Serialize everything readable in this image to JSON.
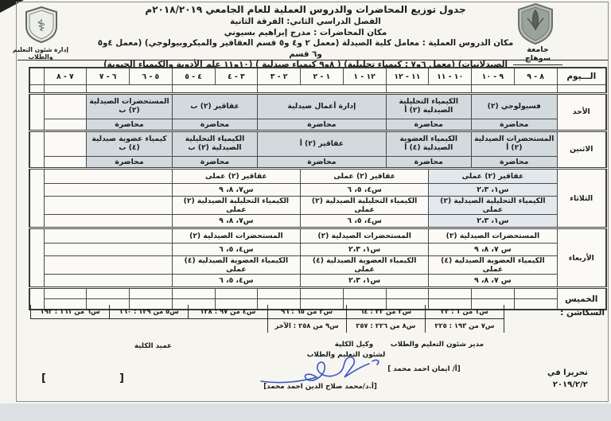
{
  "header": {
    "title": "جدول توزيع المحاضرات والدروس العملية للعام الجامعي ٢٠١٨/٢٠١٩م",
    "term": "الفصل الدراسي الثاني: الفرقة الثانية",
    "lecture_place": "مكان المحاضرات : مدرج إبراهيم بسيوني",
    "practical_place_1": "مكان الدروس العملية : معامل كلية الصيدلة (معمل ٢ و٤ و٥ قسم العقاقير والميكروبيولوجي) (معمل ٤و٥ و٦ قسم",
    "practical_place_2": "الصيدلانيات) (معمل ٦و٧ : كيمياء تحليلية) ( ٨و٩ كيمياء صيدلية ) (١٠و١١ علم الأدوية والكيمياء الحيوية)",
    "university": "جامعة سوهاج",
    "administration": "إدارة شئون التعليم والطلاب",
    "pharmacy_logo_icon": "caduceus-shield-icon",
    "university_logo_icon": "sohag-university-shield-icon"
  },
  "timetable": {
    "day_header": "الـــيوم",
    "hours": [
      "٨ - ٩",
      "٩ - ١٠",
      "١٠ - ١١",
      "١١ - ١٢",
      "١٢ - ١",
      "١ - ٢",
      "٢ - ٣",
      "٣ - ٤",
      "٤ - ٥",
      "٥ - ٦",
      "٦ - ٧",
      "٧ - ٨"
    ],
    "days": [
      {
        "name": "الأحد",
        "rows": [
          {
            "h": "ttl",
            "cells": [
              {
                "s": 2,
                "t": "فسيولوجي (٢)",
                "bg": 1
              },
              {
                "s": 2,
                "t": "الكيمياء التحليلية الصيدلية (٢) أ",
                "bg": 1
              },
              {
                "s": 3,
                "t": "إدارة أعمال صيدلية",
                "bg": 1
              },
              {
                "s": 2,
                "t": "عقاقير (٢) ب",
                "bg": 1
              },
              {
                "s": 2,
                "t": "المستحضرات الصيدلية (٢) ب",
                "bg": 1
              },
              {
                "s": 1,
                "t": ""
              }
            ]
          },
          {
            "h": "sub",
            "cells": [
              {
                "s": 2,
                "t": "محاضرة",
                "bg": 1
              },
              {
                "s": 2,
                "t": "محاضرة",
                "bg": 1
              },
              {
                "s": 3,
                "t": "محاضرة",
                "bg": 1
              },
              {
                "s": 2,
                "t": "محاضرة",
                "bg": 1
              },
              {
                "s": 2,
                "t": "محاضرة",
                "bg": 1
              },
              {
                "s": 1,
                "t": ""
              }
            ]
          }
        ]
      },
      {
        "name": "الاثنين",
        "rows": [
          {
            "h": "ttl",
            "cells": [
              {
                "s": 2,
                "t": "المستحضرات الصيدلية (٢) أ",
                "bg": 1
              },
              {
                "s": 2,
                "t": "الكيمياء العضوية الصيدلية (٤) أ",
                "bg": 1
              },
              {
                "s": 3,
                "t": "عقاقير (٢) أ",
                "bg": 1
              },
              {
                "s": 2,
                "t": "الكيمياء التحليلية الصيدلية (٢) ب",
                "bg": 1
              },
              {
                "s": 2,
                "t": "كيمياء عضوية صيدلية (٤) ب",
                "bg": 1
              },
              {
                "s": 1,
                "t": ""
              }
            ]
          },
          {
            "h": "sub",
            "cells": [
              {
                "s": 2,
                "t": "محاضرة",
                "bg": 1
              },
              {
                "s": 2,
                "t": "محاضرة",
                "bg": 1
              },
              {
                "s": 3,
                "t": "محاضرة",
                "bg": 1
              },
              {
                "s": 2,
                "t": "محاضرة",
                "bg": 1
              },
              {
                "s": 2,
                "t": "محاضرة",
                "bg": 1
              },
              {
                "s": 1,
                "t": ""
              }
            ]
          }
        ]
      },
      {
        "name": "الثلاثاء",
        "rows": [
          {
            "h": "pttl",
            "cells": [
              {
                "s": 3,
                "t": "عقاقير (٢) عملى",
                "bg": 2
              },
              {
                "s": 3,
                "t": "عقاقير (٢) عملى"
              },
              {
                "s": 3,
                "t": "عقاقير (٢) عملى"
              },
              {
                "s": 3,
                "t": ""
              }
            ]
          },
          {
            "h": "psec",
            "cells": [
              {
                "s": 3,
                "t": "س١، ٢،٣",
                "bg": 2
              },
              {
                "s": 3,
                "t": "س٤، ٥، ٦"
              },
              {
                "s": 3,
                "t": "س٧، ٨، ٩"
              },
              {
                "s": 3,
                "t": ""
              }
            ]
          },
          {
            "h": "pttl",
            "cells": [
              {
                "s": 3,
                "t": "الكيمياء التحليلية الصيدلية (٢) عملى",
                "bg": 2
              },
              {
                "s": 3,
                "t": "الكيمياء التحليلية الصيدلية (٢) عملى"
              },
              {
                "s": 3,
                "t": "الكيمياء التحليلية الصيدلية (٢) عملى"
              },
              {
                "s": 3,
                "t": ""
              }
            ]
          },
          {
            "h": "psec",
            "cells": [
              {
                "s": 3,
                "t": "س١، ٢،٣",
                "bg": 2
              },
              {
                "s": 3,
                "t": "س٤، ٥، ٦"
              },
              {
                "s": 3,
                "t": "س٧، ٨، ٩"
              },
              {
                "s": 3,
                "t": ""
              }
            ]
          }
        ]
      },
      {
        "name": "الأربعاء",
        "rows": [
          {
            "h": "pttl",
            "cells": [
              {
                "s": 3,
                "t": "المستحضرات الصيدلية (٢)"
              },
              {
                "s": 3,
                "t": "المستحضرات الصيدلية (٢)"
              },
              {
                "s": 3,
                "t": "المستحضرات الصيدلية (٢)"
              },
              {
                "s": 3,
                "t": ""
              }
            ]
          },
          {
            "h": "psec",
            "cells": [
              {
                "s": 3,
                "t": "س ٧، ٨، ٩"
              },
              {
                "s": 3,
                "t": "س١، ٢،٣"
              },
              {
                "s": 3,
                "t": "س٤، ٥، ٦"
              },
              {
                "s": 3,
                "t": ""
              }
            ]
          },
          {
            "h": "pttl",
            "cells": [
              {
                "s": 3,
                "t": "الكيمياء العضوية الصيدلية (٤) عملى"
              },
              {
                "s": 3,
                "t": "الكيمياء العضوية الصيدلية (٤) عملى"
              },
              {
                "s": 3,
                "t": "الكيمياء العضوية الصيدلية (٤) عملى"
              },
              {
                "s": 3,
                "t": ""
              }
            ]
          },
          {
            "h": "psec",
            "cells": [
              {
                "s": 3,
                "t": "س ٧، ٨، ٩"
              },
              {
                "s": 3,
                "t": "س١، ٢،٣"
              },
              {
                "s": 3,
                "t": "س٤، ٥، ٦"
              },
              {
                "s": 3,
                "t": ""
              }
            ]
          }
        ]
      },
      {
        "name": "الخميس",
        "rows": [
          {
            "h": "thu",
            "cells": [
              {
                "s": 1,
                "t": ""
              },
              {
                "s": 1,
                "t": ""
              },
              {
                "s": 1,
                "t": ""
              },
              {
                "s": 1,
                "t": ""
              },
              {
                "s": 1,
                "t": ""
              },
              {
                "s": 1,
                "t": ""
              },
              {
                "s": 1,
                "t": ""
              },
              {
                "s": 1,
                "t": ""
              },
              {
                "s": 1,
                "t": ""
              },
              {
                "s": 1,
                "t": ""
              },
              {
                "s": 1,
                "t": ""
              },
              {
                "s": 1,
                "t": ""
              }
            ]
          },
          {
            "h": "thu",
            "cells": [
              {
                "s": 1,
                "t": ""
              },
              {
                "s": 1,
                "t": ""
              },
              {
                "s": 1,
                "t": ""
              },
              {
                "s": 1,
                "t": ""
              },
              {
                "s": 1,
                "t": ""
              },
              {
                "s": 1,
                "t": ""
              },
              {
                "s": 1,
                "t": ""
              },
              {
                "s": 1,
                "t": ""
              },
              {
                "s": 1,
                "t": ""
              },
              {
                "s": 1,
                "t": ""
              },
              {
                "s": 1,
                "t": ""
              },
              {
                "s": 1,
                "t": ""
              }
            ]
          }
        ]
      }
    ]
  },
  "sections": {
    "label": "السكاشن :",
    "row1": [
      "س١ من ١ : ٣٢",
      "س٢ من ٣٣ : ٦٤",
      "س٣ من ٦٥ : ٩٦",
      "س٤ من ٩٧ : ١٢٨",
      "س٥ من ١٢٩ : ١٦٠",
      "س٦ من ١٦١ : ١٩٢"
    ],
    "row2": [
      "س٧ من ١٩٣ : ٢٢٥",
      "س٨ من ٢٢٦ : ٢٥٧",
      "س٩ من ٢٥٨ : الآخر"
    ]
  },
  "footer": {
    "written_at": "تحريرا في",
    "date": "٢٠١٩/٢/٢",
    "director_title": "مدير شئون التعليم والطلاب",
    "director_name": "[أ/ ايمان احمد محمد ]",
    "vice_dean_title_1": "وكيل الكلية",
    "vice_dean_title_2": "لشئون التعليم والطلاب",
    "vice_dean_name": "[أ.د/محمد صلاح الدين احمد محمد]",
    "dean_title": "عميد الكلية",
    "bracket_open": "[",
    "bracket_close": "]",
    "signature_color": "#3a56c5"
  }
}
